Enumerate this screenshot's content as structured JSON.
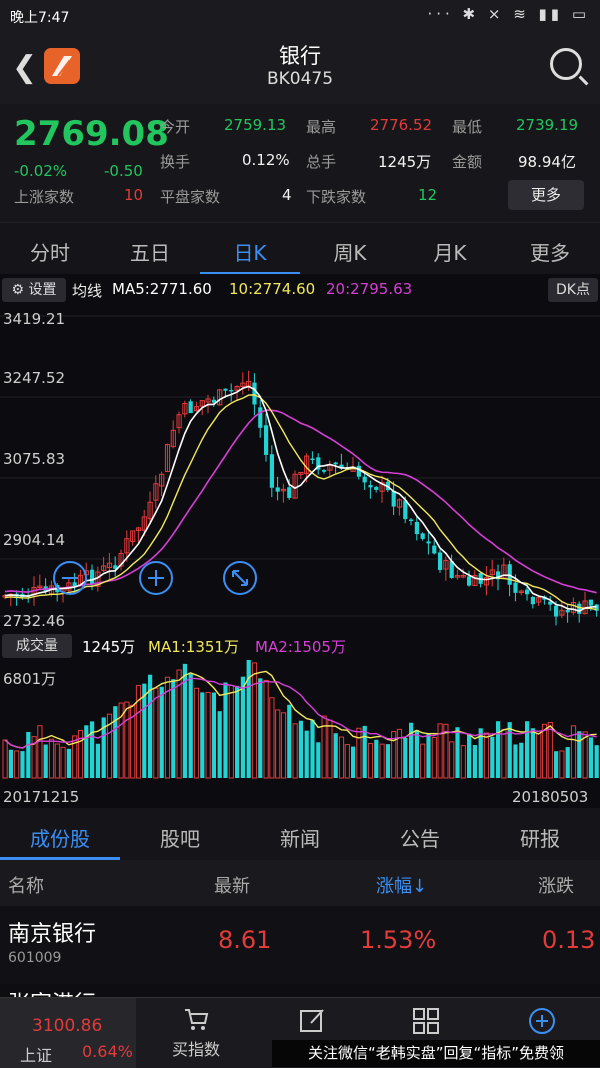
{
  "status": {
    "time": "晚上7:47",
    "icons": "··· ✱ ⨯ ≋ ▮▮ ▭"
  },
  "header": {
    "title": "银行",
    "code": "BK0475"
  },
  "quote": {
    "price": "2769.08",
    "change_pct": "-0.02%",
    "change": "-0.50",
    "open_label": "今开",
    "open": "2759.13",
    "high_label": "最高",
    "high": "2776.52",
    "low_label": "最低",
    "low": "2739.19",
    "turnover_label": "换手",
    "turnover": "0.12%",
    "volume_label": "总手",
    "volume": "1245万",
    "amount_label": "金额",
    "amount": "98.94亿",
    "up_label": "上涨家数",
    "up": "10",
    "flat_label": "平盘家数",
    "flat": "4",
    "down_label": "下跌家数",
    "down": "12",
    "more": "更多"
  },
  "tabs": [
    "分时",
    "五日",
    "日K",
    "周K",
    "月K",
    "更多"
  ],
  "chart": {
    "settings": "设置",
    "ma_label": "均线",
    "ma5": "MA5:2771.60",
    "ma10": "10:2774.60",
    "ma20": "20:2795.63",
    "dk": "DK点",
    "y_ticks": [
      "3419.21",
      "3247.52",
      "3075.83",
      "2904.14",
      "2732.46"
    ],
    "vol_button": "成交量",
    "vol_value": "1245万",
    "vol_ma1": "MA1:1351万",
    "vol_ma2": "MA2:1505万",
    "vol_max": "6801万",
    "date_start": "20171215",
    "date_end": "20180503",
    "colors": {
      "up": "#e23b3b",
      "down": "#22d3d3",
      "ma5": "#ffffff",
      "ma10": "#f2e85a",
      "ma20": "#d63fd6"
    }
  },
  "subtabs": [
    "成份股",
    "股吧",
    "新闻",
    "公告",
    "研报"
  ],
  "list": {
    "head": {
      "name": "名称",
      "latest": "最新",
      "pct": "涨幅↓",
      "chg": "涨跌"
    },
    "rows": [
      {
        "name": "南京银行",
        "code": "601009",
        "latest": "8.61",
        "pct": "1.53%",
        "chg": "0.13"
      }
    ],
    "partial_row": "张家港行"
  },
  "bottom": {
    "index_value": "3100.86",
    "index_name": "上证",
    "index_pct": "0.64%",
    "buy_index": "买指数"
  },
  "watermark": "关注微信“老韩实盘”回复“指标”免费领"
}
